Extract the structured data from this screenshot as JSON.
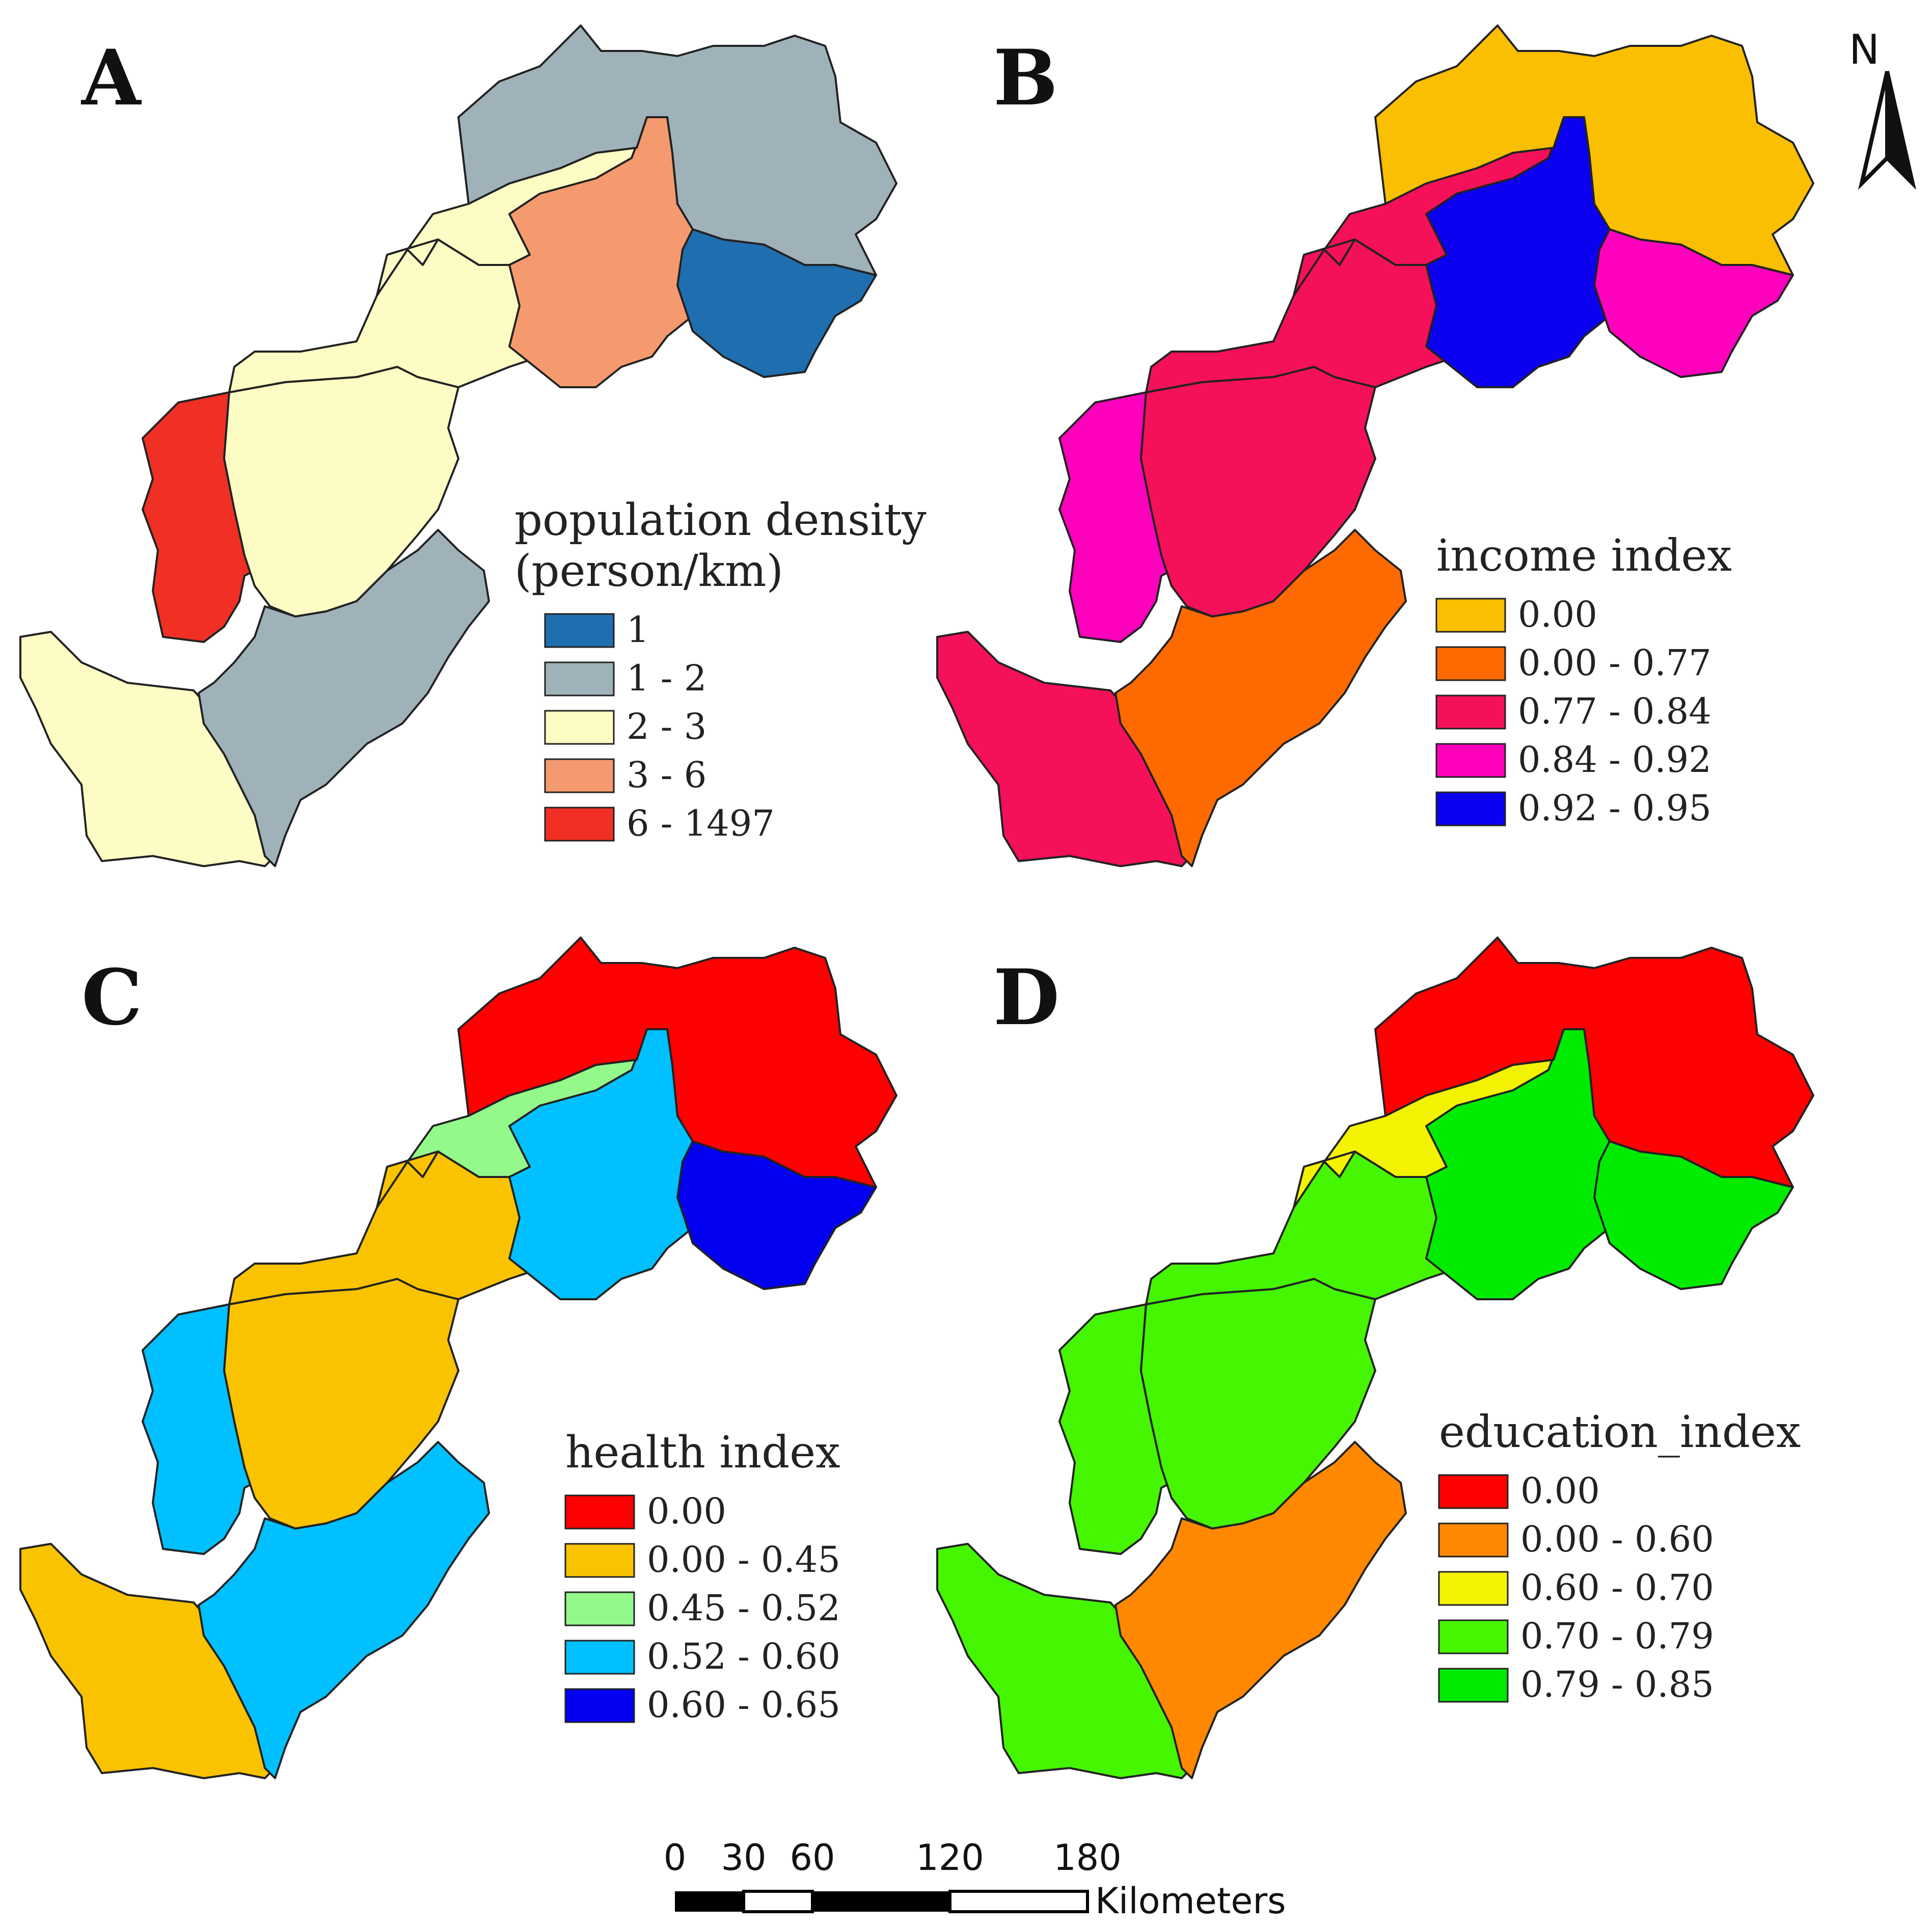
{
  "panels": [
    {
      "label": "A",
      "legend_title_lines": [
        "population density",
        "(person/km)"
      ],
      "legend": [
        {
          "label": "1",
          "color": "#1f6eb0"
        },
        {
          "label": "1 - 2",
          "color": "#9fb2ba"
        },
        {
          "label": "2 - 3",
          "color": "#fdfcc4"
        },
        {
          "label": "3 - 6",
          "color": "#f59a6e"
        },
        {
          "label": "6 - 1497",
          "color": "#f03024"
        }
      ],
      "region_colors": [
        "#fdfcc4",
        "#f03024",
        "#fdfcc4",
        "#fdfcc4",
        "#fdfcc4",
        "#9fb2ba",
        "#f59a6e",
        "#1f6eb0",
        "#9fb2ba",
        "#fdfcc4"
      ]
    },
    {
      "label": "B",
      "legend_title_lines": [
        "income index"
      ],
      "legend": [
        {
          "label": "0.00",
          "color": "#f9bf00"
        },
        {
          "label": "0.00 - 0.77",
          "color": "#ff6a00"
        },
        {
          "label": "0.77 - 0.84",
          "color": "#f5105a"
        },
        {
          "label": "0.84 - 0.92",
          "color": "#ff00bd"
        },
        {
          "label": "0.92 - 0.95",
          "color": "#0b00f0"
        }
      ],
      "region_colors": [
        "#f5105a",
        "#ff00bd",
        "#f5105a",
        "#f5105a",
        "#f5105a",
        "#ff6a00",
        "#0b00f0",
        "#ff00bd",
        "#f9bf00",
        "#f5105a"
      ]
    },
    {
      "label": "C",
      "legend_title_lines": [
        "health index"
      ],
      "legend": [
        {
          "label": "0.00",
          "color": "#ff0000"
        },
        {
          "label": "0.00 - 0.45",
          "color": "#f9c300"
        },
        {
          "label": "0.45 - 0.52",
          "color": "#93f98b"
        },
        {
          "label": "0.52 - 0.60",
          "color": "#00c0ff"
        },
        {
          "label": "0.60 - 0.65",
          "color": "#0300f2"
        }
      ],
      "region_colors": [
        "#f9c300",
        "#00c0ff",
        "#f9c300",
        "#f9c300",
        "#93f98b",
        "#00c0ff",
        "#00c0ff",
        "#0300f2",
        "#ff0000",
        "#f9c300"
      ]
    },
    {
      "label": "D",
      "legend_title_lines": [
        "education_index"
      ],
      "legend": [
        {
          "label": "0.00",
          "color": "#ff0000"
        },
        {
          "label": "0.00 - 0.60",
          "color": "#ff8800"
        },
        {
          "label": "0.60 - 0.70",
          "color": "#f3f300"
        },
        {
          "label": "0.70 - 0.79",
          "color": "#46f500"
        },
        {
          "label": "0.79 - 0.85",
          "color": "#00eb00"
        }
      ],
      "region_colors": [
        "#46f500",
        "#46f500",
        "#46f500",
        "#46f500",
        "#f3f300",
        "#ff8800",
        "#00eb00",
        "#00eb00",
        "#ff0000",
        "#f3f300"
      ]
    }
  ],
  "north_arrow": {
    "label": "N"
  },
  "scale_bar": {
    "ticks": [
      "0",
      "30",
      "60",
      "120",
      "180"
    ],
    "unit": "Kilometers"
  }
}
